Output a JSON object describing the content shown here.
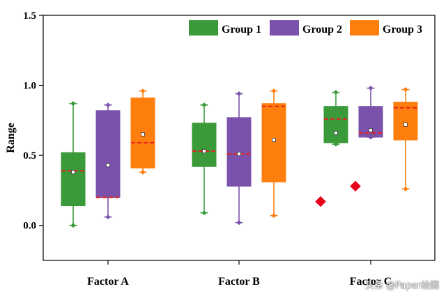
{
  "chart_data": {
    "type": "box",
    "ylabel": "Range",
    "ylim": [
      -0.25,
      1.5
    ],
    "yticks": [
      0.0,
      0.5,
      1.0,
      1.5
    ],
    "ytick_labels": [
      "0.0",
      "0.5",
      "1.0",
      "1.5"
    ],
    "categories": [
      "Factor A",
      "Factor B",
      "Factor C"
    ],
    "legend_position": "top-right",
    "series": [
      {
        "name": "Group 1",
        "color": "#3a9a3a",
        "boxes": [
          {
            "min": 0.0,
            "q1": 0.14,
            "median": 0.39,
            "q3": 0.52,
            "max": 0.87,
            "mean": 0.38,
            "outliers": []
          },
          {
            "min": 0.09,
            "q1": 0.42,
            "median": 0.53,
            "q3": 0.73,
            "max": 0.86,
            "mean": 0.53,
            "outliers": []
          },
          {
            "min": 0.58,
            "q1": 0.59,
            "median": 0.76,
            "q3": 0.85,
            "max": 0.95,
            "mean": 0.66,
            "outliers": [
              0.17
            ]
          }
        ]
      },
      {
        "name": "Group 2",
        "color": "#7b52ab",
        "boxes": [
          {
            "min": 0.06,
            "q1": 0.2,
            "median": 0.2,
            "q3": 0.82,
            "max": 0.86,
            "mean": 0.43,
            "outliers": []
          },
          {
            "min": 0.02,
            "q1": 0.28,
            "median": 0.51,
            "q3": 0.77,
            "max": 0.94,
            "mean": 0.51,
            "outliers": []
          },
          {
            "min": 0.63,
            "q1": 0.63,
            "median": 0.66,
            "q3": 0.85,
            "max": 0.98,
            "mean": 0.68,
            "outliers": [
              0.28
            ]
          }
        ]
      },
      {
        "name": "Group 3",
        "color": "#ff7f0e",
        "boxes": [
          {
            "min": 0.38,
            "q1": 0.41,
            "median": 0.59,
            "q3": 0.91,
            "max": 0.96,
            "mean": 0.65,
            "outliers": []
          },
          {
            "min": 0.07,
            "q1": 0.31,
            "median": 0.85,
            "q3": 0.87,
            "max": 0.96,
            "mean": 0.61,
            "outliers": []
          },
          {
            "min": 0.26,
            "q1": 0.61,
            "median": 0.84,
            "q3": 0.88,
            "max": 0.97,
            "mean": 0.72,
            "outliers": []
          }
        ]
      }
    ],
    "median_line_color": "#e8201a",
    "outlier_color": "#e8001a",
    "watermark": "头条 @Paper绘图"
  }
}
